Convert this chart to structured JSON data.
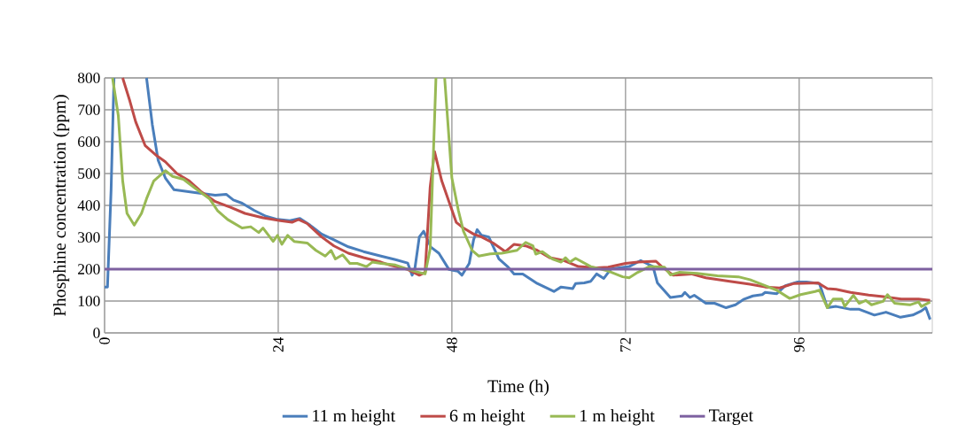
{
  "chart_data": {
    "type": "line",
    "xlabel": "Time (h)",
    "ylabel": "Phosphine concentration (ppm)",
    "xlim": [
      0,
      114.4
    ],
    "ylim": [
      0,
      800
    ],
    "xticks": [
      0,
      24,
      48,
      72,
      96
    ],
    "yticks": [
      0,
      100,
      200,
      300,
      400,
      500,
      600,
      700,
      800
    ],
    "grid": true,
    "legend": "bottom",
    "series": [
      {
        "name": "11 m height",
        "color": "#4a7ebb",
        "x": [
          0,
          0.4,
          0.9,
          1.3,
          3.5,
          5.8,
          6.6,
          7.4,
          8.4,
          9.6,
          12.5,
          15.3,
          16.8,
          17.8,
          19,
          20.7,
          22.3,
          23.9,
          25.6,
          27,
          28.4,
          30,
          31.7,
          33.7,
          35.8,
          38.2,
          40.2,
          41.9,
          42.5,
          42.9,
          43.5,
          44.1,
          45.1,
          46.2,
          47.6,
          48.8,
          49.4,
          50.4,
          51,
          51.5,
          52.1,
          53.1,
          54.5,
          55.7,
          56.6,
          57.8,
          59.8,
          62.1,
          63.1,
          64.7,
          65.1,
          66.3,
          67.2,
          68,
          69,
          70,
          72.5,
          74.1,
          74.9,
          75.8,
          76.4,
          78.2,
          79.8,
          80.2,
          80.9,
          81.5,
          83.1,
          84.3,
          85.9,
          87.2,
          88.4,
          89.6,
          90.9,
          91.3,
          92.9,
          94.1,
          95.8,
          97,
          98.8,
          99.9,
          101.1,
          103.1,
          104.3,
          106.4,
          108,
          110,
          111.7,
          112.9,
          113.5,
          114.1
        ],
        "values": [
          144,
          144,
          449,
          800,
          null,
          800,
          653,
          542,
          486,
          449,
          440,
          432,
          435,
          417,
          407,
          384,
          366,
          356,
          352,
          359,
          338,
          310,
          292,
          270,
          255,
          241,
          230,
          219,
          181,
          204,
          301,
          319,
          269,
          250,
          199,
          194,
          181,
          218,
          292,
          324,
          306,
          301,
          232,
          208,
          185,
          185,
          155,
          130,
          144,
          139,
          155,
          157,
          162,
          185,
          171,
          201,
          208,
          227,
          218,
          208,
          157,
          111,
          116,
          127,
          111,
          118,
          93,
          93,
          79,
          88,
          106,
          116,
          120,
          127,
          123,
          148,
          160,
          160,
          155,
          79,
          83,
          74,
          74,
          56,
          65,
          49,
          56,
          69,
          79,
          42
        ]
      },
      {
        "name": "6 m height",
        "color": "#be4b48",
        "x": [
          2.5,
          3.5,
          4.3,
          5.6,
          7.2,
          8.4,
          10,
          11.7,
          13.3,
          15.3,
          17.4,
          19.4,
          21.9,
          24.3,
          25.9,
          26.8,
          28,
          30,
          31.7,
          33.7,
          35.8,
          38.2,
          39.4,
          41.9,
          43.5,
          44.3,
          45,
          45.6,
          46.6,
          47.6,
          48.6,
          49.6,
          51,
          52.1,
          53.7,
          55.4,
          56.6,
          58.2,
          59.8,
          61.5,
          63.5,
          65.5,
          68,
          69.6,
          72,
          73.7,
          76.2,
          77,
          78.6,
          81.1,
          83.1,
          86.4,
          89.2,
          91.3,
          93.3,
          95.3,
          98.6,
          99.9,
          101.1,
          103.1,
          105.6,
          107.6,
          110.1,
          112.5,
          114.1
        ],
        "values": [
          800,
          727,
          662,
          588,
          556,
          537,
          500,
          477,
          444,
          412,
          394,
          375,
          361,
          352,
          347,
          356,
          343,
          301,
          273,
          250,
          236,
          222,
          213,
          199,
          181,
          190,
          458,
          569,
          477,
          412,
          347,
          329,
          310,
          301,
          282,
          255,
          278,
          273,
          259,
          236,
          227,
          208,
          204,
          206,
          218,
          222,
          225,
          208,
          181,
          185,
          173,
          162,
          153,
          144,
          141,
          155,
          157,
          139,
          137,
          127,
          119,
          114,
          106,
          106,
          102
        ]
      },
      {
        "name": "1 m height",
        "color": "#98b954",
        "x": [
          1.1,
          1.9,
          2.5,
          3.1,
          4.1,
          5.1,
          5.8,
          6.8,
          8.4,
          9.4,
          10.9,
          12.5,
          14.5,
          15.6,
          17,
          19,
          20.2,
          21.3,
          21.9,
          23.3,
          23.9,
          24.5,
          25.3,
          26.2,
          28,
          29.2,
          30.5,
          31.3,
          31.9,
          32.9,
          33.9,
          34.9,
          36.2,
          37,
          38.2,
          40.2,
          42.7,
          44.3,
          45,
          45.8,
          46.4,
          47,
          48,
          48.9,
          49.6,
          50.8,
          51.7,
          53.3,
          54.9,
          57,
          58.2,
          59.2,
          59.6,
          60.5,
          61.9,
          63.1,
          63.7,
          64.3,
          65.1,
          67.2,
          69.6,
          71.6,
          72.5,
          73.7,
          75.3,
          77.4,
          78.2,
          79.4,
          81.9,
          84.7,
          87.6,
          89.2,
          91.3,
          92.9,
          94.7,
          96.2,
          98.2,
          98.8,
          99.9,
          100.7,
          101.9,
          102.3,
          103.5,
          104.3,
          105.2,
          106,
          107.6,
          108.2,
          109.2,
          111.3,
          112.5,
          112.9,
          114.1
        ],
        "values": [
          800,
          681,
          477,
          375,
          338,
          375,
          421,
          477,
          509,
          491,
          482,
          454,
          421,
          384,
          356,
          329,
          333,
          315,
          329,
          287,
          306,
          278,
          306,
          287,
          282,
          259,
          241,
          259,
          232,
          245,
          218,
          218,
          208,
          222,
          218,
          213,
          194,
          185,
          264,
          800,
          null,
          800,
          486,
          384,
          319,
          259,
          241,
          248,
          250,
          259,
          284,
          273,
          247,
          255,
          232,
          222,
          236,
          222,
          234,
          208,
          194,
          176,
          173,
          190,
          208,
          206,
          182,
          190,
          187,
          179,
          176,
          167,
          148,
          134,
          108,
          120,
          130,
          134,
          79,
          106,
          106,
          83,
          118,
          93,
          102,
          88,
          99,
          120,
          93,
          88,
          97,
          83,
          97
        ]
      },
      {
        "name": "Target",
        "color": "#7d60a0",
        "x": [
          0,
          114.4
        ],
        "values": [
          200,
          200
        ]
      }
    ]
  }
}
